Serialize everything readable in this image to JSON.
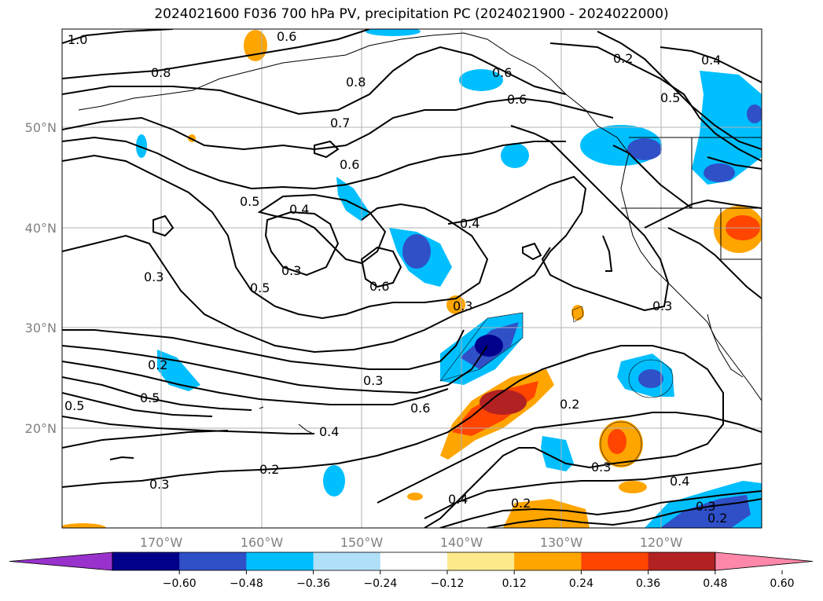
{
  "title": "2024021600 F036 700 hPa PV, precipitation PC (2024021900 - 2024022000)",
  "lat_labels": [
    "50°N",
    "40°N",
    "30°N",
    "20°N"
  ],
  "lon_labels": [
    "170°W",
    "160°W",
    "150°W",
    "140°W",
    "130°W",
    "120°W"
  ],
  "colorbar": {
    "ticks": [
      "−0.60",
      "−0.48",
      "−0.36",
      "−0.24",
      "−0.12",
      "0.12",
      "0.24",
      "0.36",
      "0.48",
      "0.60"
    ],
    "colors": [
      "#9932cc",
      "#00008b",
      "#3050c8",
      "#00bfff",
      "#b0e0f8",
      "#ffffff",
      "#fde98a",
      "#ffa500",
      "#ff4500",
      "#b22222",
      "#ff88aa"
    ]
  },
  "contour_labels": [
    "1.0",
    "0.6",
    "0.8",
    "0.8",
    "0.7",
    "0.6",
    "0.6",
    "0.6",
    "0.4",
    "0.5",
    "0.5",
    "0.5",
    "0.4",
    "0.4",
    "0.6",
    "0.3",
    "0.3",
    "0.3",
    "0.5",
    "0.2",
    "0.3",
    "0.5",
    "0.6",
    "0.4",
    "0.2",
    "0.3",
    "0.2",
    "0.3",
    "0.4",
    "0.2",
    "0.4",
    "0.3",
    "0.2",
    "0.3",
    "0.2"
  ]
}
